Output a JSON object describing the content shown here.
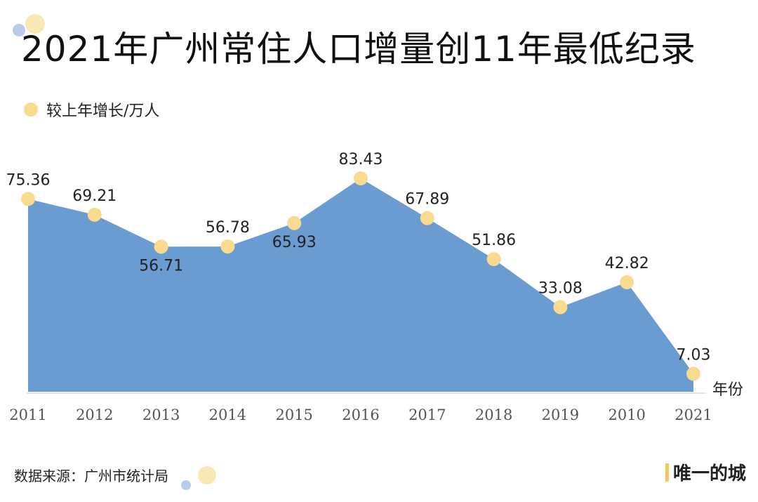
{
  "title": "2021年广州常住人口增量创11年最低纪录",
  "legend_label": "较上年增长/万人",
  "source": "数据来源：广州市统计局",
  "brand": "唯一的城",
  "colors": {
    "area": "#6a9bd1",
    "marker": "#f8db8e",
    "marker_deco_blue": "#b9cbe8"
  },
  "chart_data": {
    "type": "area",
    "categories": [
      "2011",
      "2012",
      "2013",
      "2014",
      "2015",
      "2016",
      "2017",
      "2018",
      "2019",
      "2010",
      "2021"
    ],
    "series": [
      {
        "name": "较上年增长/万人",
        "values": [
          75.36,
          69.21,
          56.71,
          56.78,
          65.93,
          83.43,
          67.89,
          51.86,
          33.08,
          42.82,
          7.03
        ]
      }
    ],
    "xlabel": "年份",
    "ylabel": "",
    "ylim": [
      0,
      85
    ],
    "grid": false,
    "legend": "top-left"
  }
}
